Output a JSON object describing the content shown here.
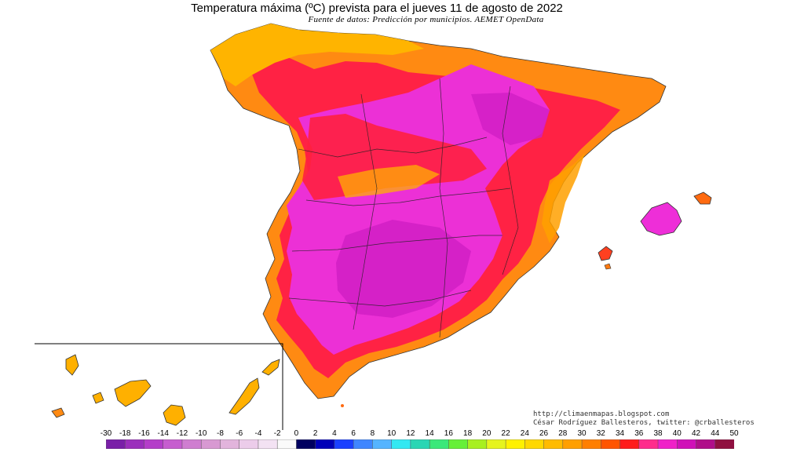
{
  "title": "Temperatura máxima (ºC) prevista para el jueves 11 de agosto de 2022",
  "subtitle": "Fuente de datos: Predicción por municipios. AEMET OpenData",
  "credits": {
    "url": "http://climaenmapas.blogspot.com",
    "author": "César Rodríguez Ballesteros, twitter: @crballesteros"
  },
  "legend": {
    "labels": [
      "-30",
      "-18",
      "-16",
      "-14",
      "-12",
      "-10",
      "-8",
      "-6",
      "-4",
      "-2",
      "0",
      "2",
      "4",
      "6",
      "8",
      "10",
      "12",
      "14",
      "16",
      "18",
      "20",
      "22",
      "24",
      "26",
      "28",
      "30",
      "32",
      "34",
      "36",
      "38",
      "40",
      "42",
      "44",
      "50"
    ],
    "colors": [
      "#7a1fa8",
      "#9b2fbc",
      "#b43ec9",
      "#c65dcf",
      "#cf7ed0",
      "#d899d2",
      "#e2b4dc",
      "#ecccea",
      "#f3e2f3",
      "#fafafa",
      "#000060",
      "#0000b8",
      "#1a40ff",
      "#3f86ff",
      "#55b4ff",
      "#33e8f2",
      "#2ad6b4",
      "#3be87a",
      "#66f038",
      "#a8f020",
      "#e6f41e",
      "#fff100",
      "#ffd800",
      "#ffbb00",
      "#ff9f00",
      "#ff7f00",
      "#ff5500",
      "#ff1c1c",
      "#ff2c8c",
      "#f020c8",
      "#d010b8",
      "#b00e8a",
      "#901040"
    ]
  },
  "map_colors": {
    "sea": "#ffffff",
    "hot_magenta": "#ee2ed8",
    "very_hot": "#d21ec8",
    "red": "#ff1f3a",
    "orange": "#ff7a10",
    "amber": "#ffb400",
    "border": "#000000"
  }
}
